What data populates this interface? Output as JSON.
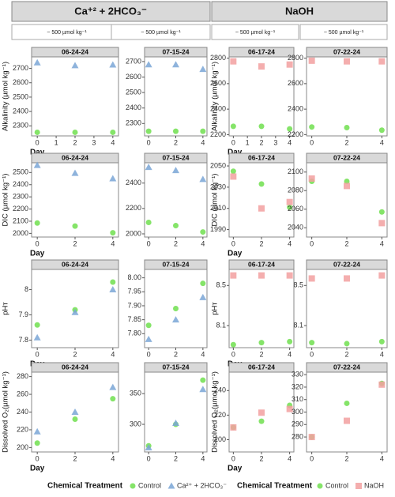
{
  "headers": [
    "Ca⁺² + 2HCO₃⁻",
    "NaOH"
  ],
  "subheaders": [
    "~ 500 µmol kg⁻¹",
    "~ 500 µmol kg⁻¹",
    "~ 500 µmol kg⁻¹",
    "~ 500 µmol kg⁻¹"
  ],
  "legends": [
    {
      "title": "Chemical Treatment",
      "entries": [
        {
          "name": "Control",
          "color": "#66dd44",
          "marker": "circle"
        },
        {
          "name": "Ca²⁺ + 2HCO₃⁻",
          "color": "#7aa6d6",
          "marker": "triangle"
        }
      ]
    },
    {
      "title": "Chemical Treatment",
      "entries": [
        {
          "name": "Control",
          "color": "#66dd44",
          "marker": "circle"
        },
        {
          "name": "NaOH",
          "color": "#f2a0a0",
          "marker": "square"
        }
      ]
    }
  ],
  "chart_data": [
    {
      "type": "scatter",
      "title": "06-24-24",
      "ylabel": "Alkalinity (µmol kg⁻¹)",
      "xlabel": "Day",
      "x": [
        0,
        2,
        4
      ],
      "xlim": [
        -0.3,
        4.3
      ],
      "xticks": [
        0,
        1,
        2,
        3,
        4
      ],
      "ylim": [
        2230,
        2780
      ],
      "yticks": [
        2300,
        2400,
        2500,
        2600,
        2700
      ],
      "series": [
        {
          "color": "#66dd44",
          "marker": "circle",
          "values": [
            2255,
            2255,
            2255
          ]
        },
        {
          "color": "#7aa6d6",
          "marker": "triangle",
          "values": [
            2740,
            2720,
            2725
          ]
        }
      ]
    },
    {
      "type": "scatter",
      "title": "07-15-24",
      "x": [
        0,
        2,
        4
      ],
      "xlim": [
        -0.3,
        4.3
      ],
      "xticks": [
        0,
        2,
        4
      ],
      "ylim": [
        2220,
        2730
      ],
      "yticks": [
        2300,
        2400,
        2500,
        2600,
        2700
      ],
      "series": [
        {
          "color": "#66dd44",
          "marker": "circle",
          "values": [
            2250,
            2250,
            2250
          ]
        },
        {
          "color": "#7aa6d6",
          "marker": "triangle",
          "values": [
            2680,
            2680,
            2650
          ]
        }
      ]
    },
    {
      "type": "scatter",
      "title": "06-17-24",
      "ylabel": "Alkalinity (µmol kg⁻¹)",
      "xlabel": "Day",
      "x": [
        0,
        2,
        4
      ],
      "xlim": [
        -0.3,
        4.3
      ],
      "xticks": [
        0,
        1,
        2,
        3,
        4
      ],
      "ylim": [
        2190,
        2810
      ],
      "yticks": [
        2200,
        2400,
        2600,
        2800
      ],
      "series": [
        {
          "color": "#66dd44",
          "marker": "circle",
          "values": [
            2265,
            2265,
            2245
          ]
        },
        {
          "color": "#f2a0a0",
          "marker": "square",
          "values": [
            2775,
            2735,
            2750
          ]
        }
      ]
    },
    {
      "type": "scatter",
      "title": "07-22-24",
      "x": [
        0,
        2,
        4
      ],
      "xlim": [
        -0.3,
        4.3
      ],
      "xticks": [
        0,
        2,
        4
      ],
      "ylim": [
        2190,
        2810
      ],
      "yticks": [
        2200,
        2400,
        2600,
        2800
      ],
      "series": [
        {
          "color": "#66dd44",
          "marker": "circle",
          "values": [
            2260,
            2255,
            2235
          ]
        },
        {
          "color": "#f2a0a0",
          "marker": "square",
          "values": [
            2780,
            2775,
            2775
          ]
        }
      ]
    },
    {
      "type": "scatter",
      "title": "06-24-24",
      "ylabel": "DIC (µmol kg⁻¹)",
      "xlabel": "Day",
      "x": [
        0,
        2,
        4
      ],
      "xlim": [
        -0.3,
        4.3
      ],
      "xticks": [
        0,
        2,
        4
      ],
      "ylim": [
        1970,
        2580
      ],
      "yticks": [
        2000,
        2100,
        2200,
        2300,
        2400,
        2500
      ],
      "series": [
        {
          "color": "#66dd44",
          "marker": "circle",
          "values": [
            2085,
            2060,
            2005
          ]
        },
        {
          "color": "#7aa6d6",
          "marker": "triangle",
          "values": [
            2560,
            2495,
            2450
          ]
        }
      ]
    },
    {
      "type": "scatter",
      "title": "07-15-24",
      "x": [
        0,
        2,
        4
      ],
      "xlim": [
        -0.3,
        4.3
      ],
      "xticks": [
        0,
        2,
        4
      ],
      "ylim": [
        1975,
        2560
      ],
      "yticks": [
        2000,
        2200,
        2400
      ],
      "series": [
        {
          "color": "#66dd44",
          "marker": "circle",
          "values": [
            2090,
            2065,
            2015
          ]
        },
        {
          "color": "#7aa6d6",
          "marker": "triangle",
          "values": [
            2525,
            2500,
            2430
          ]
        }
      ]
    },
    {
      "type": "scatter",
      "title": "06-17-24",
      "ylabel": "DIC (µmol kg⁻¹)",
      "xlabel": "Day",
      "x": [
        0,
        2,
        4
      ],
      "xlim": [
        -0.3,
        4.3
      ],
      "xticks": [
        0,
        2,
        4
      ],
      "ylim": [
        1983,
        2053
      ],
      "yticks": [
        1990,
        2010,
        2030,
        2050
      ],
      "series": [
        {
          "color": "#66dd44",
          "marker": "circle",
          "values": [
            2045,
            2033,
            2011
          ]
        },
        {
          "color": "#f2a0a0",
          "marker": "square",
          "values": [
            2040,
            2010,
            2016
          ]
        }
      ]
    },
    {
      "type": "scatter",
      "title": "07-22-24",
      "x": [
        0,
        2,
        4
      ],
      "xlim": [
        -0.3,
        4.3
      ],
      "xticks": [
        0,
        2,
        4
      ],
      "ylim": [
        2030,
        2110
      ],
      "yticks": [
        2040,
        2060,
        2080,
        2100
      ],
      "series": [
        {
          "color": "#66dd44",
          "marker": "circle",
          "values": [
            2090,
            2090,
            2057
          ]
        },
        {
          "color": "#f2a0a0",
          "marker": "square",
          "values": [
            2093,
            2085,
            2045
          ]
        }
      ]
    },
    {
      "type": "scatter",
      "title": "06-24-24",
      "ylabel": "pHᴛ",
      "xlabel": "Day",
      "x": [
        0,
        2,
        4
      ],
      "xlim": [
        -0.3,
        4.3
      ],
      "xticks": [
        0,
        2,
        4
      ],
      "ylim": [
        7.77,
        8.08
      ],
      "yticks": [
        7.8,
        7.9,
        8.0
      ],
      "series": [
        {
          "color": "#66dd44",
          "marker": "circle",
          "values": [
            7.86,
            7.92,
            8.03
          ]
        },
        {
          "color": "#7aa6d6",
          "marker": "triangle",
          "values": [
            7.81,
            7.91,
            8.0
          ]
        }
      ]
    },
    {
      "type": "scatter",
      "title": "07-15-24",
      "x": [
        0,
        2,
        4
      ],
      "xlim": [
        -0.3,
        4.3
      ],
      "xticks": [
        0,
        2,
        4
      ],
      "ylim": [
        7.75,
        8.03
      ],
      "yticks": [
        {
          "value": 7.8,
          "label": "7.80"
        },
        {
          "value": 7.85,
          "label": "7.85"
        },
        {
          "value": 7.9,
          "label": "7.90"
        },
        {
          "value": 7.95,
          "label": "7.95"
        },
        {
          "value": 8.0,
          "label": "8.00"
        }
      ],
      "series": [
        {
          "color": "#66dd44",
          "marker": "circle",
          "values": [
            7.83,
            7.89,
            7.98
          ]
        },
        {
          "color": "#7aa6d6",
          "marker": "triangle",
          "values": [
            7.78,
            7.85,
            7.93
          ]
        }
      ]
    },
    {
      "type": "scatter",
      "title": "06-17-24",
      "ylabel": "pHᴛ",
      "xlabel": "Day",
      "x": [
        0,
        2,
        4
      ],
      "xlim": [
        -0.3,
        4.3
      ],
      "xticks": [
        0,
        2,
        4
      ],
      "ylim": [
        7.88,
        8.66
      ],
      "yticks": [
        8.1,
        8.5
      ],
      "series": [
        {
          "color": "#66dd44",
          "marker": "circle",
          "values": [
            7.91,
            7.93,
            7.94
          ]
        },
        {
          "color": "#f2a0a0",
          "marker": "square",
          "values": [
            8.6,
            8.6,
            8.6
          ]
        }
      ]
    },
    {
      "type": "scatter",
      "title": "07-22-24",
      "x": [
        0,
        2,
        4
      ],
      "xlim": [
        -0.3,
        4.3
      ],
      "xticks": [
        0,
        2,
        4
      ],
      "ylim": [
        7.88,
        8.66
      ],
      "yticks": [
        8.1,
        8.5
      ],
      "series": [
        {
          "color": "#66dd44",
          "marker": "circle",
          "values": [
            7.93,
            7.92,
            7.94
          ]
        },
        {
          "color": "#f2a0a0",
          "marker": "square",
          "values": [
            8.57,
            8.57,
            8.6
          ]
        }
      ]
    },
    {
      "type": "scatter",
      "title": "06-24-24",
      "ylabel": "Dissolved O₂(µmol kg⁻¹)",
      "xlabel": "Day",
      "x": [
        0,
        2,
        4
      ],
      "xlim": [
        -0.3,
        4.3
      ],
      "xticks": [
        0,
        2,
        4
      ],
      "ylim": [
        195,
        285
      ],
      "yticks": [
        200,
        220,
        240,
        260,
        280
      ],
      "series": [
        {
          "color": "#66dd44",
          "marker": "circle",
          "values": [
            205,
            232,
            255
          ]
        },
        {
          "color": "#7aa6d6",
          "marker": "triangle",
          "values": [
            218,
            240,
            268
          ]
        }
      ]
    },
    {
      "type": "scatter",
      "title": "07-15-24",
      "x": [
        0,
        2,
        4
      ],
      "xlim": [
        -0.3,
        4.3
      ],
      "xticks": [
        0,
        2,
        4
      ],
      "ylim": [
        255,
        385
      ],
      "yticks": [
        300,
        350
      ],
      "series": [
        {
          "color": "#66dd44",
          "marker": "circle",
          "values": [
            265,
            300,
            372
          ]
        },
        {
          "color": "#7aa6d6",
          "marker": "triangle",
          "values": [
            262,
            302,
            357
          ]
        }
      ]
    },
    {
      "type": "scatter",
      "title": "06-17-24",
      "ylabel": "Dissolved O₂(µmol kg⁻¹)",
      "xlabel": "Day",
      "x": [
        0,
        2,
        4
      ],
      "xlim": [
        -0.3,
        4.3
      ],
      "xticks": [
        0,
        2,
        4
      ],
      "ylim": [
        190,
        255
      ],
      "yticks": [
        200,
        220,
        240
      ],
      "series": [
        {
          "color": "#66dd44",
          "marker": "circle",
          "values": [
            210,
            215,
            228
          ]
        },
        {
          "color": "#f2a0a0",
          "marker": "square",
          "values": [
            210,
            222,
            225
          ]
        }
      ]
    },
    {
      "type": "scatter",
      "title": "07-22-24",
      "x": [
        0,
        2,
        4
      ],
      "xlim": [
        -0.3,
        4.3
      ],
      "xticks": [
        0,
        2,
        4
      ],
      "ylim": [
        268,
        332
      ],
      "yticks": [
        280,
        290,
        300,
        310,
        320,
        330
      ],
      "series": [
        {
          "color": "#66dd44",
          "marker": "circle",
          "values": [
            280,
            307,
            323
          ]
        },
        {
          "color": "#f2a0a0",
          "marker": "square",
          "values": [
            280,
            293,
            322
          ]
        }
      ]
    }
  ]
}
